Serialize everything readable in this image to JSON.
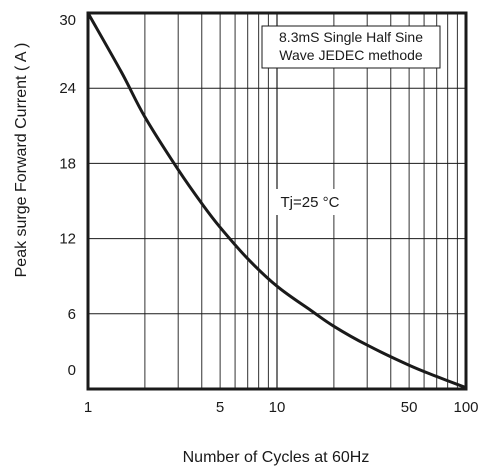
{
  "chart_data": {
    "type": "line",
    "xscale": "log",
    "xlim": [
      1,
      100
    ],
    "ylim": [
      0,
      30
    ],
    "ylabel": "Peak surge Forward Current ( A )",
    "xlabel": "Number of Cycles at 60Hz",
    "x_ticks": [
      1,
      5,
      10,
      50,
      100
    ],
    "x_tick_labels": [
      "1",
      "5",
      "10",
      "50",
      "100"
    ],
    "y_ticks": [
      0,
      6,
      12,
      18,
      24,
      30
    ],
    "y_tick_labels": [
      "0",
      "6",
      "12",
      "18",
      "24",
      "30"
    ],
    "grid": true,
    "annotations": {
      "note_line1": "8.3mS Single Half Sine",
      "note_line2": "Wave JEDEC methode",
      "temperature": "Tj=25 °C"
    },
    "series": [
      {
        "x": [
          1,
          1.5,
          2,
          3,
          4,
          5,
          7,
          10,
          15,
          20,
          30,
          50,
          70,
          100
        ],
        "values": [
          30.9,
          25.3,
          21.7,
          17.5,
          14.8,
          12.9,
          10.4,
          8.2,
          6.3,
          5.0,
          3.5,
          1.9,
          1.0,
          0.1
        ]
      }
    ],
    "line_color": "#1a1a1a"
  }
}
